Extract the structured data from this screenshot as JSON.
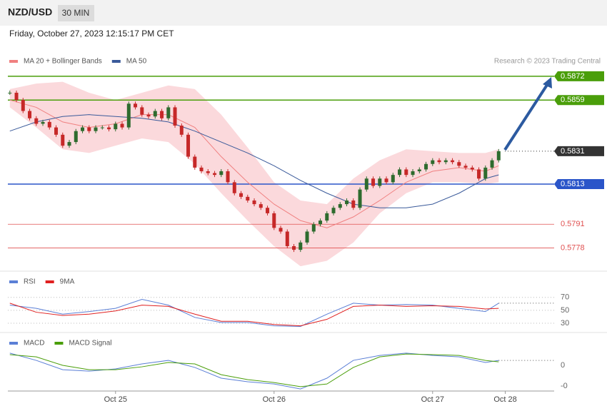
{
  "header": {
    "symbol": "NZD/USD",
    "interval": "30 MIN",
    "timestamp": "Friday, October 27, 2023 12:15:17 PM CET"
  },
  "chart_data": [
    {
      "type": "candlestick",
      "credit": "Research © 2023 Trading Central",
      "up_color": "#2e6b2e",
      "down_color": "#c62828",
      "x": [
        8,
        9,
        10,
        11,
        12,
        13,
        14,
        15,
        16,
        17,
        18,
        19,
        20,
        21,
        22,
        23,
        24,
        25,
        26,
        27,
        28,
        29,
        30,
        31,
        32,
        33,
        34,
        35,
        36,
        37,
        38,
        39,
        40,
        41,
        42,
        43,
        44,
        45,
        46,
        47,
        48,
        49,
        50,
        51,
        52,
        53,
        54,
        55,
        56,
        57,
        58,
        59,
        60,
        61,
        62,
        63,
        64,
        65,
        66,
        67,
        68,
        69,
        70,
        71,
        72,
        73,
        74,
        75,
        76,
        77,
        78,
        79,
        80,
        81,
        82
      ],
      "close": [
        0.5863,
        0.5859,
        0.5853,
        0.5849,
        0.5846,
        0.5847,
        0.5844,
        0.584,
        0.5834,
        0.5836,
        0.5842,
        0.5844,
        0.5842,
        0.5844,
        0.5844,
        0.5843,
        0.5846,
        0.5844,
        0.5857,
        0.5855,
        0.5851,
        0.585,
        0.5853,
        0.5849,
        0.5855,
        0.5845,
        0.584,
        0.5828,
        0.5822,
        0.582,
        0.5819,
        0.5818,
        0.582,
        0.5814,
        0.5808,
        0.5806,
        0.5804,
        0.5802,
        0.58,
        0.5797,
        0.5789,
        0.5787,
        0.5779,
        0.5777,
        0.5781,
        0.5787,
        0.5791,
        0.5793,
        0.5797,
        0.58,
        0.5802,
        0.5804,
        0.58,
        0.581,
        0.5816,
        0.5812,
        0.5816,
        0.5814,
        0.5818,
        0.5821,
        0.5818,
        0.582,
        0.5821,
        0.5824,
        0.5826,
        0.5825,
        0.5826,
        0.5825,
        0.5823,
        0.5822,
        0.5821,
        0.5816,
        0.5822,
        0.5826,
        0.5831
      ],
      "bands": {
        "color": "#fbd9dc",
        "x": [
          8,
          12,
          16,
          20,
          24,
          28,
          32,
          36,
          40,
          44,
          48,
          52,
          56,
          60,
          64,
          68,
          72,
          76,
          80,
          82
        ],
        "upper": [
          0.5865,
          0.5868,
          0.5869,
          0.5863,
          0.5859,
          0.5863,
          0.5867,
          0.5865,
          0.5851,
          0.5833,
          0.5814,
          0.5804,
          0.5802,
          0.5816,
          0.5826,
          0.5832,
          0.5831,
          0.583,
          0.583,
          0.5832
        ],
        "lower": [
          0.5855,
          0.5844,
          0.5832,
          0.583,
          0.5834,
          0.5838,
          0.5836,
          0.5824,
          0.5808,
          0.5793,
          0.5779,
          0.5768,
          0.5771,
          0.5781,
          0.5797,
          0.5808,
          0.5814,
          0.5814,
          0.5813,
          0.5814
        ]
      },
      "series": [
        {
          "name": "MA 20 + Bollinger Bands",
          "color": "#f08080",
          "x": [
            8,
            12,
            16,
            20,
            24,
            28,
            32,
            36,
            40,
            44,
            48,
            52,
            56,
            60,
            64,
            68,
            72,
            76,
            80,
            82
          ],
          "values": [
            0.5859,
            0.5855,
            0.5847,
            0.5844,
            0.5846,
            0.5851,
            0.5851,
            0.5844,
            0.5828,
            0.5814,
            0.5802,
            0.5793,
            0.5789,
            0.5795,
            0.5804,
            0.5814,
            0.582,
            0.5822,
            0.582,
            0.5823
          ]
        },
        {
          "name": "MA 50",
          "color": "#3a5a9a",
          "x": [
            8,
            12,
            16,
            20,
            24,
            28,
            32,
            36,
            40,
            44,
            48,
            52,
            56,
            60,
            64,
            68,
            72,
            76,
            80,
            82
          ],
          "values": [
            0.5842,
            0.5847,
            0.585,
            0.5851,
            0.585,
            0.5849,
            0.5847,
            0.5842,
            0.5836,
            0.583,
            0.5823,
            0.5815,
            0.5808,
            0.5802,
            0.58,
            0.58,
            0.5802,
            0.5808,
            0.5816,
            0.5818
          ]
        }
      ],
      "levels": [
        {
          "value": 0.5872,
          "color": "#4a9e0a",
          "style": "box",
          "line": "solid"
        },
        {
          "value": 0.5859,
          "color": "#4a9e0a",
          "style": "box",
          "line": "solid"
        },
        {
          "value": 0.5831,
          "color": "#333333",
          "style": "box",
          "line": "dotted"
        },
        {
          "value": 0.5813,
          "color": "#2a55c9",
          "style": "box",
          "line": "solid"
        },
        {
          "value": 0.5791,
          "color": "#e05050",
          "style": "text",
          "line": "solid"
        },
        {
          "value": 0.5778,
          "color": "#e05050",
          "style": "text",
          "line": "solid"
        }
      ],
      "xlim": [
        7.7,
        90.4
      ],
      "ylim": [
        0.57661,
        0.58747
      ]
    },
    {
      "type": "line",
      "series": [
        {
          "name": "RSI",
          "color": "#5b7fd6",
          "x": [
            8,
            12,
            16,
            20,
            24,
            28,
            32,
            36,
            40,
            44,
            48,
            52,
            56,
            60,
            64,
            68,
            72,
            76,
            80,
            82
          ],
          "values": [
            58,
            53,
            44,
            48,
            53,
            67,
            58,
            39,
            31,
            31,
            26,
            25,
            44,
            61,
            58,
            59,
            58,
            53,
            48,
            61
          ]
        },
        {
          "name": "9MA",
          "color": "#e02020",
          "x": [
            8,
            12,
            16,
            20,
            24,
            28,
            32,
            36,
            40,
            44,
            48,
            52,
            56,
            60,
            64,
            68,
            72,
            76,
            80,
            82
          ],
          "values": [
            61,
            47,
            42,
            44,
            49,
            58,
            56,
            44,
            33,
            33,
            28,
            26,
            36,
            56,
            58,
            56,
            57,
            56,
            52,
            53
          ]
        }
      ],
      "xlim": [
        7.7,
        90.4
      ],
      "ylim": [
        20,
        83
      ],
      "yticks": [
        70,
        50,
        30
      ],
      "grid": true
    },
    {
      "type": "line",
      "series": [
        {
          "name": "MACD",
          "color": "#5b7fd6",
          "x": [
            8,
            12,
            16,
            20,
            24,
            28,
            32,
            36,
            40,
            44,
            48,
            52,
            56,
            60,
            64,
            68,
            72,
            76,
            80,
            82
          ],
          "values": [
            0.00059,
            0.00024,
            -0.00021,
            -0.00028,
            -0.00017,
            7e-05,
            0.00024,
            -0.0001,
            -0.00062,
            -0.00079,
            -0.0009,
            -0.00114,
            -0.00062,
            0.00024,
            0.00048,
            0.00059,
            0.00048,
            0.00041,
            0.00014,
            0.00024
          ]
        },
        {
          "name": "MACD Signal",
          "color": "#4a9e0a",
          "x": [
            8,
            12,
            16,
            20,
            24,
            28,
            32,
            36,
            40,
            44,
            48,
            52,
            56,
            60,
            64,
            68,
            72,
            76,
            80,
            82
          ],
          "values": [
            0.00052,
            0.00041,
            0,
            -0.00021,
            -0.00021,
            -7e-05,
            0.00014,
            7e-05,
            -0.00045,
            -0.00069,
            -0.00083,
            -0.00103,
            -0.0009,
            -0.0001,
            0.00041,
            0.00055,
            0.00052,
            0.00048,
            0.00024,
            0.00017
          ]
        }
      ],
      "xlim": [
        7.7,
        90.4
      ],
      "ylim": [
        -0.00124,
        0.00138
      ],
      "yticks": [
        0,
        {
          "value": -0.001,
          "label": "-0"
        }
      ],
      "xticks": [
        {
          "value": 24,
          "label": "Oct 25"
        },
        {
          "value": 48,
          "label": "Oct 26"
        },
        {
          "value": 72,
          "label": "Oct 27"
        },
        {
          "value": 83,
          "label": "Oct 28"
        }
      ]
    }
  ]
}
